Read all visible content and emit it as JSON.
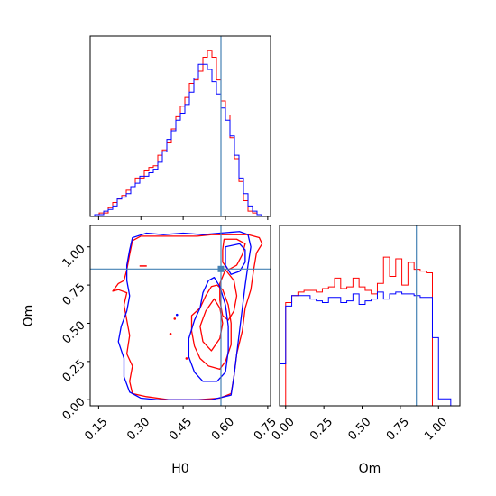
{
  "colors": {
    "red": "#ff0000",
    "blue": "#0000ff",
    "truth": "#4682b4",
    "frame": "#000000"
  },
  "chart_data": [
    {
      "panel": "histogram-h0",
      "type": "histogram",
      "xlim": [
        0.12,
        0.76
      ],
      "ymax": 1.0,
      "truth_x": 0.584,
      "bin_edges": [
        0.12,
        0.136,
        0.152,
        0.168,
        0.184,
        0.2,
        0.216,
        0.232,
        0.248,
        0.264,
        0.28,
        0.296,
        0.312,
        0.328,
        0.344,
        0.36,
        0.376,
        0.392,
        0.408,
        0.424,
        0.44,
        0.456,
        0.472,
        0.488,
        0.504,
        0.52,
        0.536,
        0.552,
        0.568,
        0.584,
        0.6,
        0.616,
        0.632,
        0.648,
        0.664,
        0.68,
        0.696,
        0.712,
        0.728,
        0.744,
        0.76
      ],
      "series": [
        {
          "name": "",
          "color": "red",
          "values": [
            0.0,
            0.01,
            0.02,
            0.02,
            0.05,
            0.08,
            0.1,
            0.12,
            0.15,
            0.17,
            0.22,
            0.22,
            0.26,
            0.28,
            0.29,
            0.35,
            0.38,
            0.42,
            0.5,
            0.57,
            0.63,
            0.68,
            0.76,
            0.78,
            0.83,
            0.91,
            0.95,
            0.91,
            0.78,
            0.66,
            0.58,
            0.45,
            0.33,
            0.2,
            0.09,
            0.03,
            0.02,
            0.01,
            0.0,
            0.0
          ]
        },
        {
          "name": "",
          "color": "blue",
          "values": [
            0.0,
            0.01,
            0.01,
            0.03,
            0.04,
            0.06,
            0.1,
            0.11,
            0.13,
            0.17,
            0.19,
            0.23,
            0.23,
            0.25,
            0.27,
            0.31,
            0.37,
            0.44,
            0.49,
            0.55,
            0.59,
            0.64,
            0.71,
            0.79,
            0.87,
            0.87,
            0.84,
            0.77,
            0.7,
            0.62,
            0.55,
            0.46,
            0.35,
            0.22,
            0.13,
            0.06,
            0.03,
            0.01,
            0.0,
            0.0
          ]
        }
      ]
    },
    {
      "panel": "contour-h0-om",
      "type": "contour",
      "xlabel": "H0",
      "ylabel": "Om",
      "xlim": [
        0.12,
        0.76
      ],
      "ylim": [
        -0.04,
        1.14
      ],
      "xticks": [
        0.15,
        0.3,
        0.45,
        0.6,
        0.75
      ],
      "xtick_labels": [
        "0.15",
        "0.30",
        "0.45",
        "0.60",
        "0.75"
      ],
      "yticks": [
        0.0,
        0.25,
        0.5,
        0.75,
        1.0
      ],
      "ytick_labels": [
        "0.00",
        "0.25",
        "0.50",
        "0.75",
        "1.00"
      ],
      "truth": {
        "x": 0.584,
        "y": 0.855
      },
      "contours": [
        {
          "color": "red",
          "points": [
            [
              0.27,
              1.04
            ],
            [
              0.3,
              1.07
            ],
            [
              0.4,
              1.07
            ],
            [
              0.5,
              1.07
            ],
            [
              0.55,
              1.08
            ],
            [
              0.62,
              1.08
            ],
            [
              0.68,
              1.08
            ],
            [
              0.72,
              1.06
            ],
            [
              0.73,
              1.02
            ],
            [
              0.71,
              0.96
            ],
            [
              0.7,
              0.85
            ],
            [
              0.69,
              0.72
            ],
            [
              0.67,
              0.6
            ],
            [
              0.66,
              0.45
            ],
            [
              0.64,
              0.3
            ],
            [
              0.63,
              0.15
            ],
            [
              0.62,
              0.04
            ],
            [
              0.58,
              0.01
            ],
            [
              0.5,
              0.0
            ],
            [
              0.4,
              0.0
            ],
            [
              0.32,
              0.02
            ],
            [
              0.27,
              0.04
            ],
            [
              0.26,
              0.12
            ],
            [
              0.27,
              0.22
            ],
            [
              0.25,
              0.3
            ],
            [
              0.26,
              0.42
            ],
            [
              0.25,
              0.52
            ],
            [
              0.24,
              0.62
            ],
            [
              0.25,
              0.7
            ],
            [
              0.22,
              0.72
            ],
            [
              0.2,
              0.71
            ],
            [
              0.22,
              0.76
            ],
            [
              0.24,
              0.78
            ],
            [
              0.25,
              0.85
            ],
            [
              0.26,
              0.95
            ],
            [
              0.27,
              1.04
            ]
          ]
        },
        {
          "color": "red",
          "points": [
            [
              0.57,
              0.75
            ],
            [
              0.59,
              0.72
            ],
            [
              0.61,
              0.62
            ],
            [
              0.62,
              0.5
            ],
            [
              0.62,
              0.36
            ],
            [
              0.6,
              0.25
            ],
            [
              0.58,
              0.2
            ],
            [
              0.54,
              0.22
            ],
            [
              0.51,
              0.27
            ],
            [
              0.49,
              0.35
            ],
            [
              0.48,
              0.45
            ],
            [
              0.48,
              0.55
            ],
            [
              0.51,
              0.6
            ],
            [
              0.53,
              0.68
            ],
            [
              0.55,
              0.74
            ],
            [
              0.57,
              0.75
            ]
          ]
        },
        {
          "color": "red",
          "points": [
            [
              0.56,
              0.66
            ],
            [
              0.58,
              0.6
            ],
            [
              0.59,
              0.5
            ],
            [
              0.58,
              0.4
            ],
            [
              0.55,
              0.32
            ],
            [
              0.52,
              0.38
            ],
            [
              0.51,
              0.48
            ],
            [
              0.53,
              0.58
            ],
            [
              0.56,
              0.66
            ]
          ]
        },
        {
          "color": "red",
          "points": [
            [
              0.595,
              1.05
            ],
            [
              0.64,
              1.05
            ],
            [
              0.67,
              1.02
            ],
            [
              0.66,
              0.95
            ],
            [
              0.64,
              0.88
            ],
            [
              0.61,
              0.85
            ],
            [
              0.59,
              0.9
            ],
            [
              0.59,
              0.98
            ],
            [
              0.595,
              1.05
            ]
          ]
        },
        {
          "color": "red",
          "points": [
            [
              0.6,
              0.85
            ],
            [
              0.63,
              0.78
            ],
            [
              0.64,
              0.68
            ],
            [
              0.63,
              0.58
            ],
            [
              0.61,
              0.52
            ],
            [
              0.59,
              0.55
            ],
            [
              0.58,
              0.65
            ],
            [
              0.58,
              0.76
            ],
            [
              0.6,
              0.85
            ]
          ]
        },
        {
          "color": "blue",
          "points": [
            [
              0.27,
              1.06
            ],
            [
              0.32,
              1.09
            ],
            [
              0.38,
              1.08
            ],
            [
              0.45,
              1.09
            ],
            [
              0.52,
              1.08
            ],
            [
              0.58,
              1.09
            ],
            [
              0.65,
              1.1
            ],
            [
              0.68,
              1.08
            ],
            [
              0.69,
              1.0
            ],
            [
              0.68,
              0.88
            ],
            [
              0.67,
              0.75
            ],
            [
              0.66,
              0.6
            ],
            [
              0.65,
              0.45
            ],
            [
              0.64,
              0.3
            ],
            [
              0.63,
              0.15
            ],
            [
              0.62,
              0.03
            ],
            [
              0.55,
              0.0
            ],
            [
              0.45,
              0.0
            ],
            [
              0.36,
              0.0
            ],
            [
              0.3,
              0.01
            ],
            [
              0.26,
              0.05
            ],
            [
              0.24,
              0.15
            ],
            [
              0.24,
              0.27
            ],
            [
              0.22,
              0.38
            ],
            [
              0.23,
              0.48
            ],
            [
              0.25,
              0.58
            ],
            [
              0.26,
              0.68
            ],
            [
              0.25,
              0.78
            ],
            [
              0.25,
              0.88
            ],
            [
              0.26,
              0.98
            ],
            [
              0.27,
              1.06
            ]
          ]
        },
        {
          "color": "blue",
          "points": [
            [
              0.56,
              0.8
            ],
            [
              0.58,
              0.74
            ],
            [
              0.6,
              0.62
            ],
            [
              0.61,
              0.48
            ],
            [
              0.61,
              0.32
            ],
            [
              0.6,
              0.18
            ],
            [
              0.57,
              0.12
            ],
            [
              0.52,
              0.12
            ],
            [
              0.49,
              0.18
            ],
            [
              0.47,
              0.28
            ],
            [
              0.47,
              0.4
            ],
            [
              0.49,
              0.52
            ],
            [
              0.51,
              0.6
            ],
            [
              0.52,
              0.7
            ],
            [
              0.54,
              0.78
            ],
            [
              0.56,
              0.8
            ]
          ]
        },
        {
          "color": "blue",
          "points": [
            [
              0.6,
              1.0
            ],
            [
              0.65,
              1.02
            ],
            [
              0.67,
              0.98
            ],
            [
              0.67,
              0.9
            ],
            [
              0.65,
              0.84
            ],
            [
              0.62,
              0.82
            ],
            [
              0.6,
              0.88
            ],
            [
              0.6,
              1.0
            ]
          ]
        }
      ],
      "markers": [
        {
          "color": "red",
          "x": 0.308,
          "y": 0.875,
          "kind": "dash"
        },
        {
          "color": "red",
          "x": 0.42,
          "y": 0.53,
          "kind": "dot"
        },
        {
          "color": "red",
          "x": 0.405,
          "y": 0.43,
          "kind": "dot"
        },
        {
          "color": "red",
          "x": 0.462,
          "y": 0.27,
          "kind": "dot"
        },
        {
          "color": "blue",
          "x": 0.428,
          "y": 0.555,
          "kind": "dot"
        }
      ]
    },
    {
      "panel": "histogram-om",
      "type": "histogram",
      "xlabel": "Om",
      "xlim": [
        -0.04,
        1.14
      ],
      "ymax": 1.0,
      "truth_x": 0.855,
      "xticks": [
        0.0,
        0.25,
        0.5,
        0.75,
        1.0
      ],
      "xtick_labels": [
        "0.00",
        "0.25",
        "0.50",
        "0.75",
        "1.00"
      ],
      "bin_edges": [
        -0.04,
        0.0,
        0.04,
        0.08,
        0.12,
        0.16,
        0.2,
        0.24,
        0.28,
        0.32,
        0.36,
        0.4,
        0.44,
        0.48,
        0.52,
        0.56,
        0.6,
        0.64,
        0.68,
        0.72,
        0.76,
        0.8,
        0.84,
        0.88,
        0.92,
        0.96,
        1.0,
        1.04,
        1.08,
        1.14
      ],
      "series": [
        {
          "name": "",
          "color": "red",
          "values": [
            0.0,
            0.59,
            0.63,
            0.65,
            0.66,
            0.66,
            0.65,
            0.67,
            0.68,
            0.73,
            0.67,
            0.68,
            0.73,
            0.68,
            0.66,
            0.64,
            0.7,
            0.85,
            0.74,
            0.84,
            0.69,
            0.82,
            0.78,
            0.77,
            0.76,
            0.0,
            0.0,
            0.0,
            0.0
          ]
        },
        {
          "name": "",
          "color": "blue",
          "values": [
            0.24,
            0.57,
            0.63,
            0.63,
            0.63,
            0.61,
            0.6,
            0.59,
            0.62,
            0.62,
            0.59,
            0.6,
            0.64,
            0.58,
            0.6,
            0.61,
            0.65,
            0.61,
            0.64,
            0.65,
            0.64,
            0.64,
            0.63,
            0.62,
            0.62,
            0.39,
            0.04,
            0.04,
            0.0
          ]
        }
      ]
    }
  ]
}
